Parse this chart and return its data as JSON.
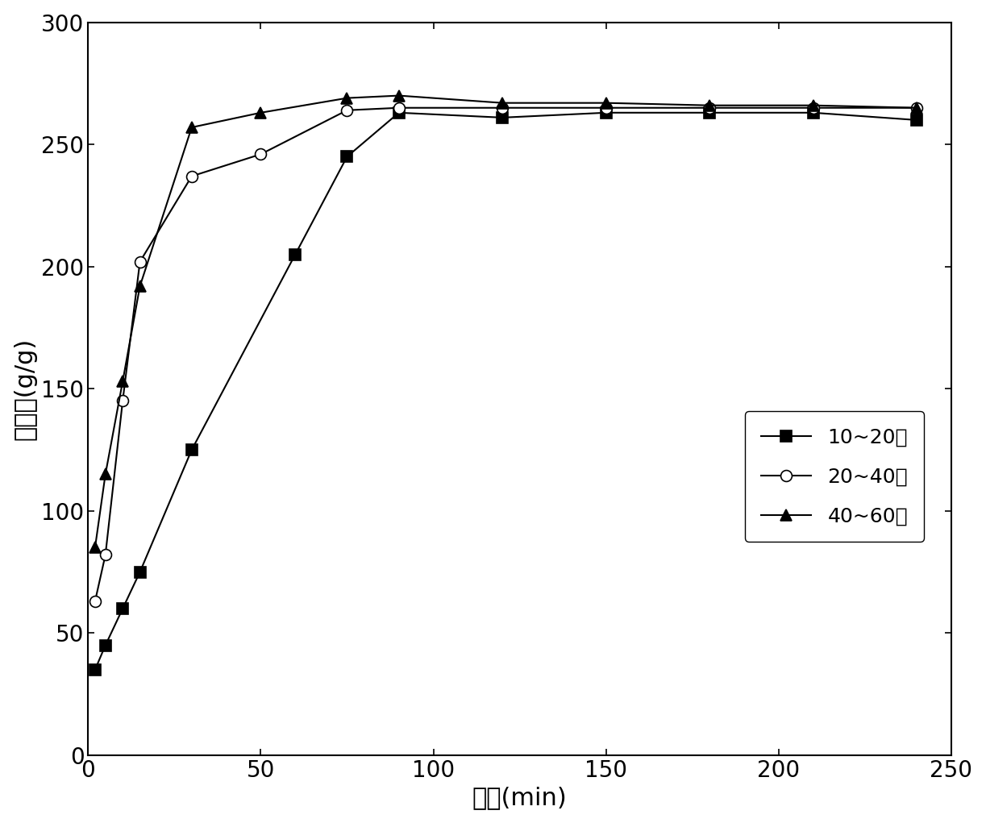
{
  "series": [
    {
      "label": "10~20目",
      "x": [
        2,
        5,
        10,
        15,
        30,
        60,
        75,
        90,
        120,
        150,
        180,
        210,
        240
      ],
      "y": [
        35,
        45,
        60,
        75,
        125,
        205,
        245,
        263,
        261,
        263,
        263,
        263,
        260
      ],
      "marker": "s",
      "markersize": 10,
      "markerfacecolor": "black",
      "color": "black",
      "linewidth": 1.5
    },
    {
      "label": "20~40目",
      "x": [
        2,
        5,
        10,
        15,
        30,
        50,
        75,
        90,
        120,
        150,
        180,
        210,
        240
      ],
      "y": [
        63,
        82,
        145,
        202,
        237,
        246,
        264,
        265,
        265,
        265,
        265,
        265,
        265
      ],
      "marker": "o",
      "markersize": 10,
      "markerfacecolor": "white",
      "color": "black",
      "linewidth": 1.5
    },
    {
      "label": "40~60目",
      "x": [
        2,
        5,
        10,
        15,
        30,
        50,
        75,
        90,
        120,
        150,
        180,
        210,
        240
      ],
      "y": [
        85,
        115,
        153,
        192,
        257,
        263,
        269,
        270,
        267,
        267,
        266,
        266,
        265
      ],
      "marker": "^",
      "markersize": 10,
      "markerfacecolor": "black",
      "color": "black",
      "linewidth": 1.5
    }
  ],
  "xlabel": "时间(min)",
  "ylabel": "吸水率(g/g)",
  "xlim": [
    0,
    250
  ],
  "ylim": [
    0,
    300
  ],
  "xticks": [
    0,
    50,
    100,
    150,
    200,
    250
  ],
  "yticks": [
    0,
    50,
    100,
    150,
    200,
    250,
    300
  ],
  "xlabel_fontsize": 22,
  "ylabel_fontsize": 22,
  "tick_fontsize": 20,
  "legend_fontsize": 18,
  "figure_size": [
    12.23,
    10.21
  ]
}
